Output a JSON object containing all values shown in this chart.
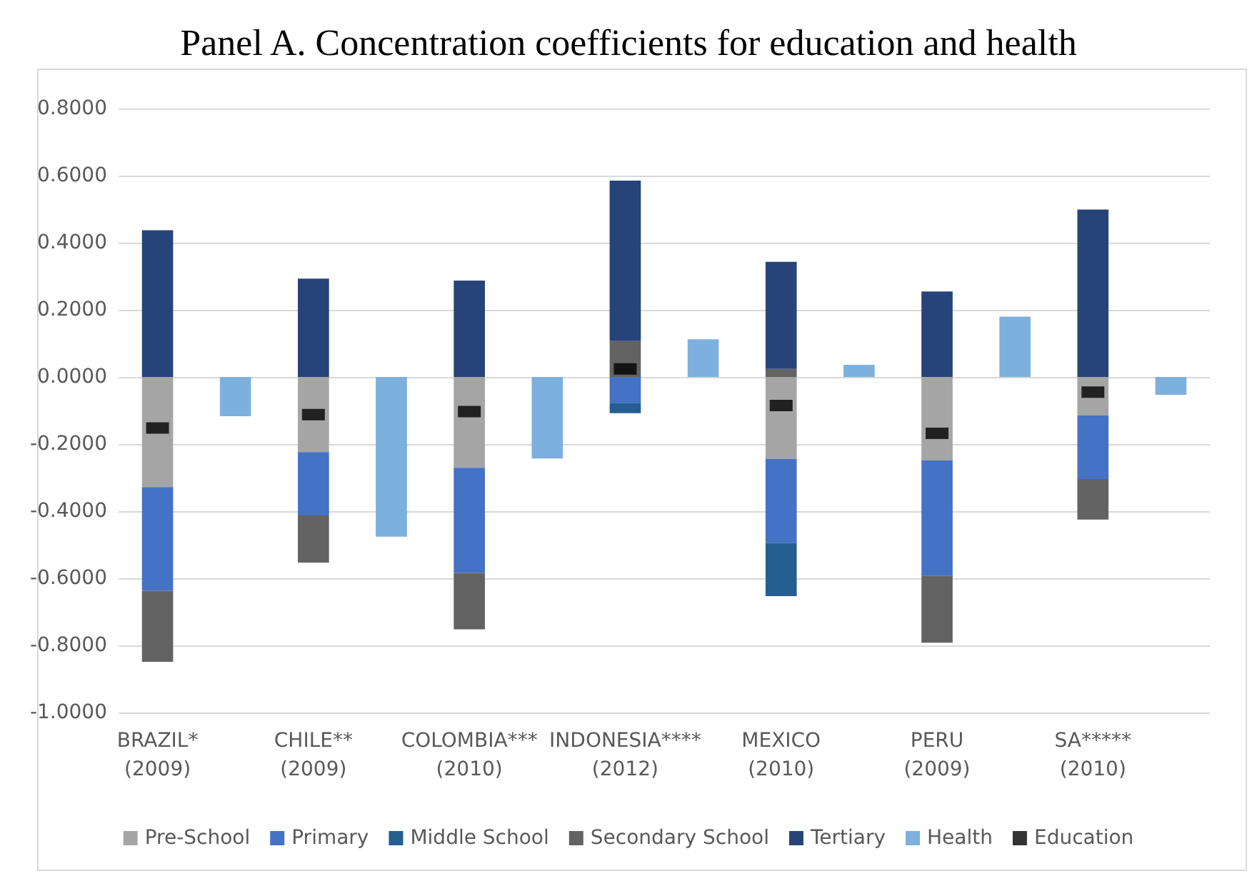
{
  "chart_data": {
    "type": "bar",
    "title": "Panel A. Concentration coefficients for education and health",
    "stacked": true,
    "categories": [
      "BRAZIL*\n(2009)",
      null,
      "CHILE**\n(2009)",
      null,
      "COLOMBIA***\n(2010)",
      null,
      "INDONESIA****\n(2012)",
      null,
      "MEXICO\n(2010)",
      null,
      "PERU\n(2009)",
      null,
      "SA*****\n(2010)",
      null
    ],
    "series": [
      {
        "name": "Pre-School",
        "color": "#a5a5a5",
        "values": [
          -0.328,
          null,
          -0.224,
          null,
          -0.271,
          null,
          null,
          null,
          -0.244,
          null,
          -0.249,
          null,
          -0.115,
          null
        ]
      },
      {
        "name": "Primary",
        "color": "#4472c4",
        "values": [
          -0.309,
          null,
          -0.189,
          null,
          -0.313,
          null,
          -0.077,
          null,
          -0.251,
          null,
          -0.344,
          null,
          -0.189,
          null
        ]
      },
      {
        "name": "Middle School",
        "color": "#255e91",
        "values": [
          null,
          null,
          null,
          null,
          null,
          null,
          -0.031,
          null,
          -0.158,
          null,
          null,
          null,
          null,
          null
        ]
      },
      {
        "name": "Secondary School",
        "color": "#636363",
        "values": [
          -0.212,
          null,
          -0.14,
          null,
          -0.168,
          null,
          0.107,
          null,
          0.024,
          null,
          -0.199,
          null,
          -0.121,
          null
        ]
      },
      {
        "name": "Tertiary",
        "color": "#264478",
        "values": [
          0.437,
          null,
          0.293,
          null,
          0.287,
          null,
          0.478,
          null,
          0.319,
          null,
          0.255,
          null,
          0.499,
          null
        ]
      },
      {
        "name": "Health",
        "color": "#7eb0de",
        "values": [
          null,
          -0.117,
          null,
          -0.476,
          null,
          -0.243,
          null,
          0.112,
          null,
          0.036,
          null,
          0.18,
          null,
          -0.053
        ]
      },
      {
        "name": "Education",
        "type": "scatter",
        "color": "#000000",
        "values": [
          -0.152,
          null,
          -0.112,
          null,
          -0.103,
          null,
          0.024,
          null,
          -0.085,
          null,
          -0.168,
          null,
          -0.045,
          null
        ]
      }
    ],
    "ylim": [
      -1,
      0.8
    ],
    "yticks": [
      {
        "value": -1,
        "label": "-1.0000"
      },
      {
        "value": -0.8,
        "label": "-0.8000"
      },
      {
        "value": -0.6,
        "label": "-0.6000"
      },
      {
        "value": -0.4,
        "label": "-0.4000"
      },
      {
        "value": -0.2,
        "label": "-0.2000"
      },
      {
        "value": 0,
        "label": "0.0000"
      },
      {
        "value": 0.2,
        "label": "0.2000"
      },
      {
        "value": 0.4,
        "label": "0.4000"
      },
      {
        "value": 0.6,
        "label": "0.6000"
      },
      {
        "value": 0.8,
        "label": "0.8000"
      }
    ],
    "grid": "y",
    "legend": "bottom"
  }
}
